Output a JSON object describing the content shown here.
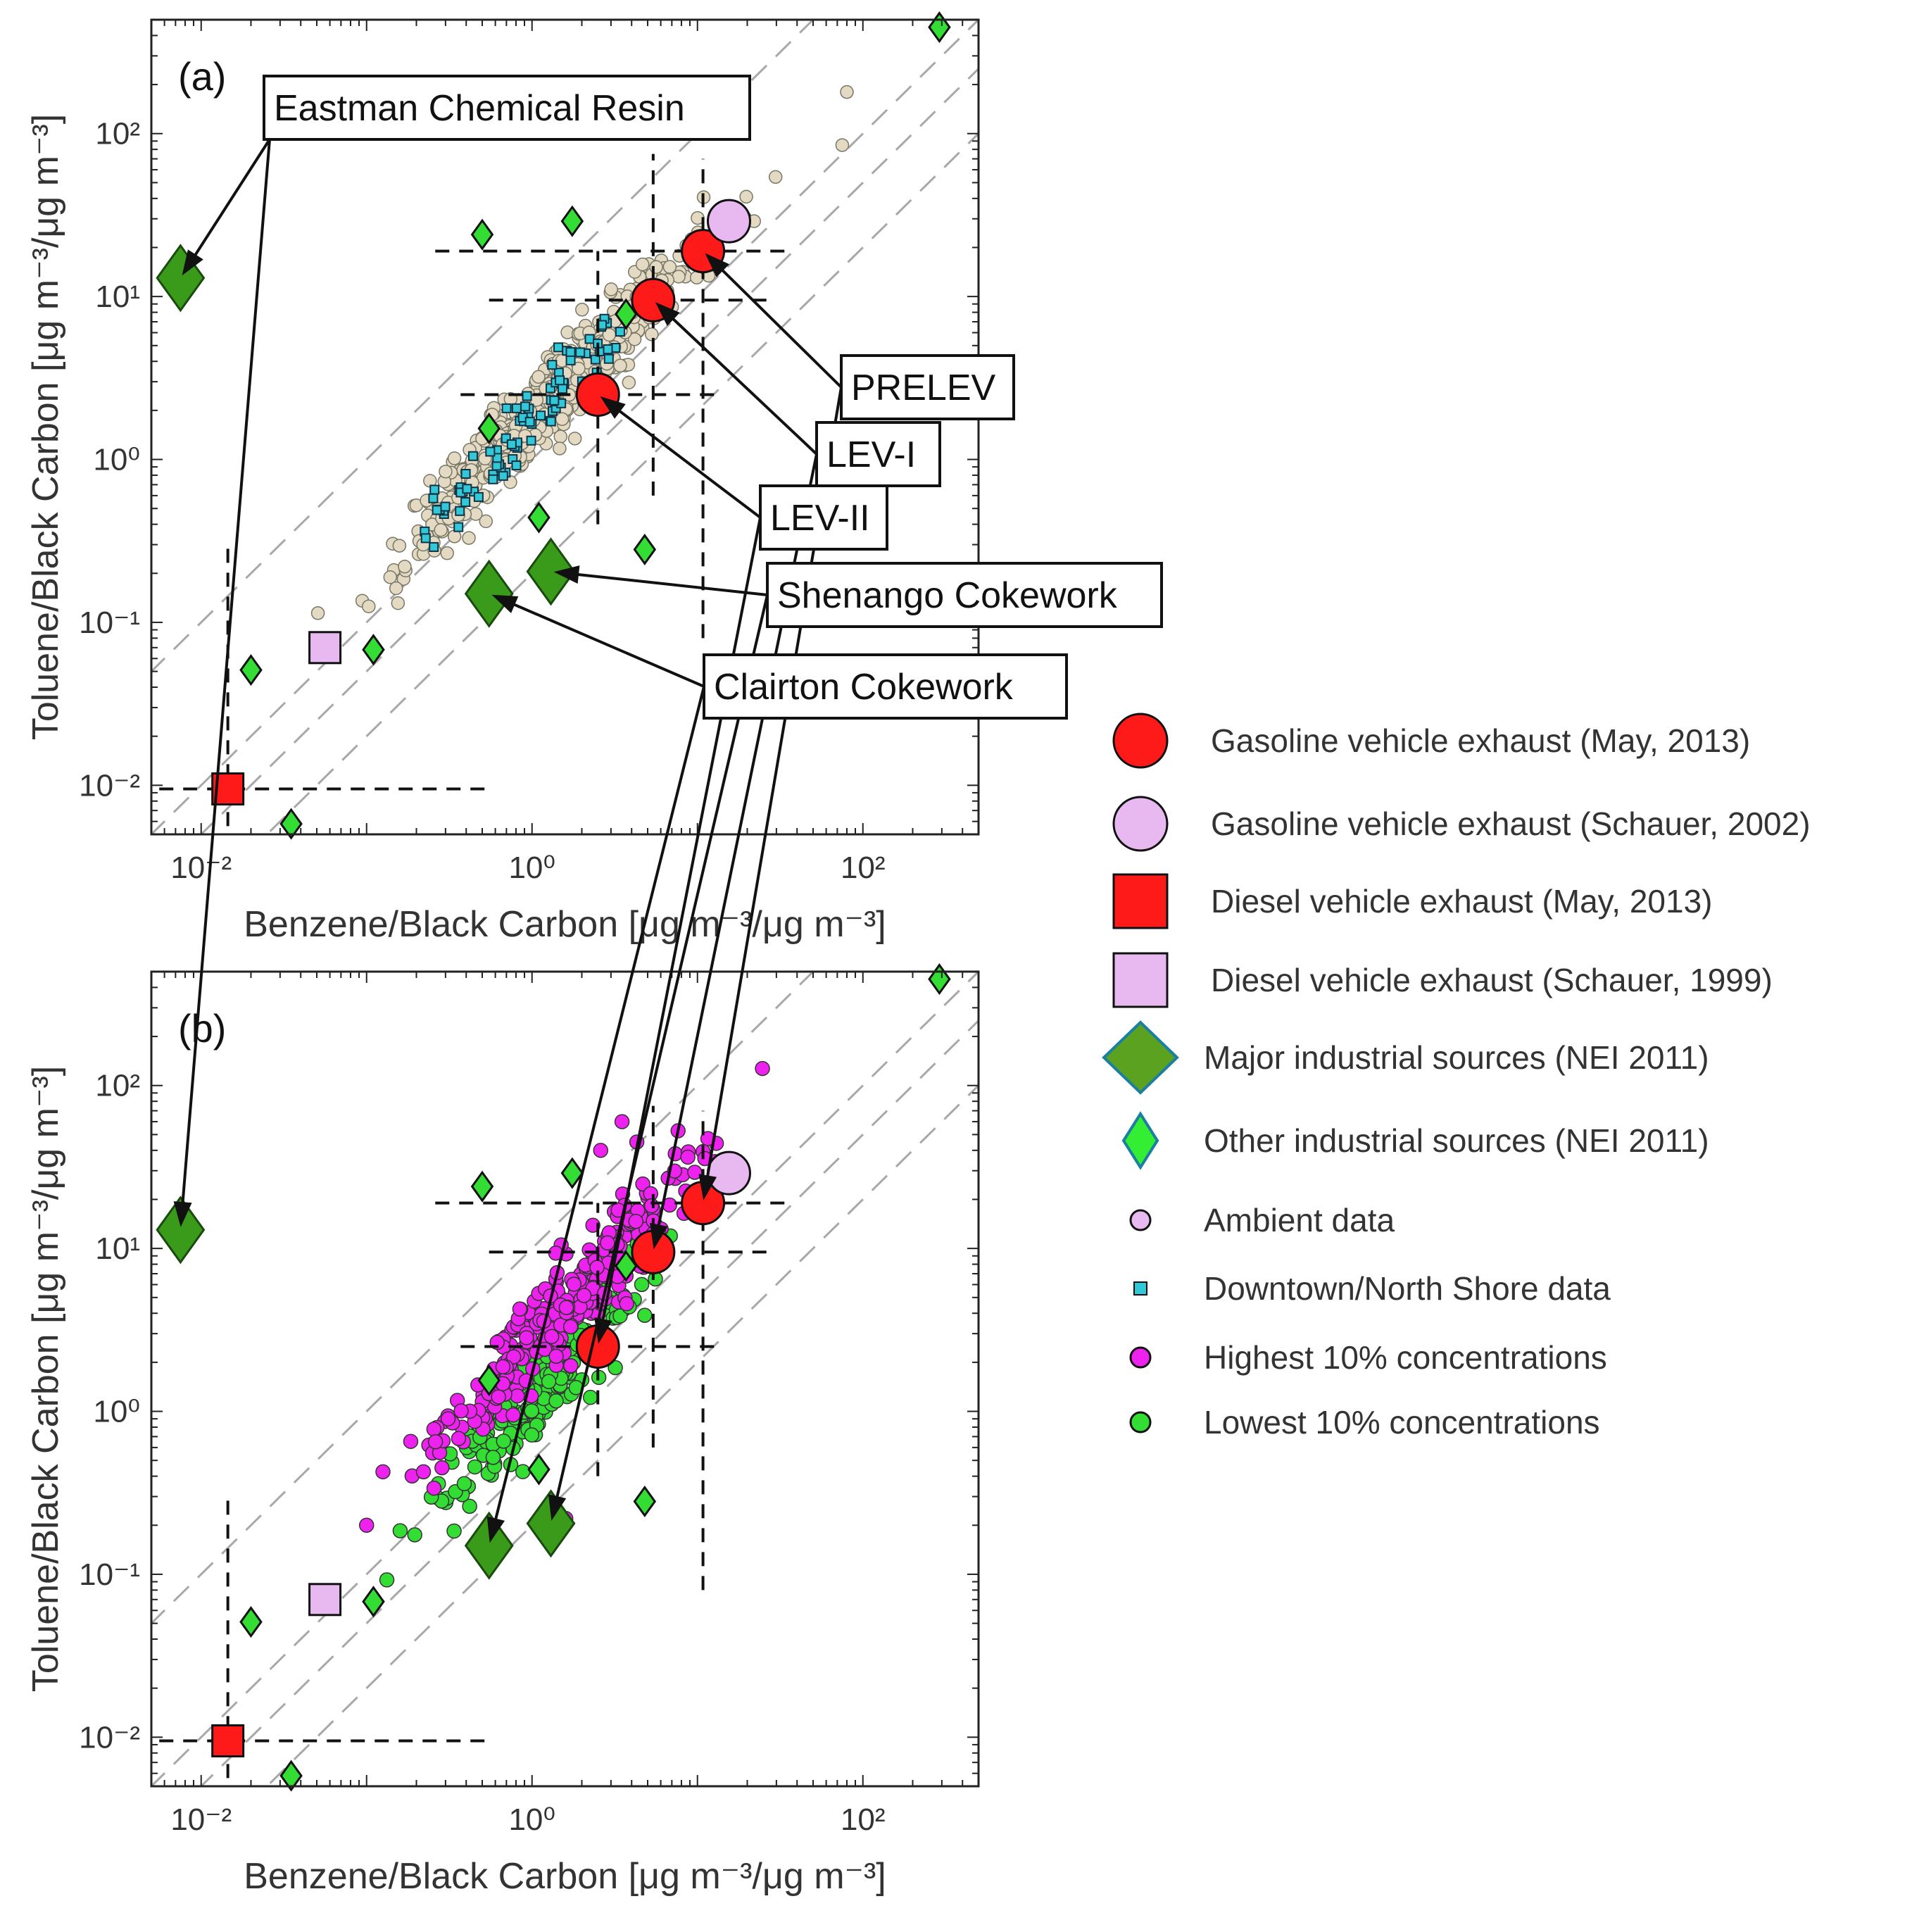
{
  "chart_data": {
    "type": "scatter",
    "figure_title": "",
    "scale": {
      "x": "log",
      "y": "log"
    },
    "xlim": [
      0.005,
      500
    ],
    "ylim": [
      0.005,
      500
    ],
    "xlabel": "Benzene/Black Carbon  [μg m⁻³/μg m⁻³]",
    "ylabel": "Toluene/Black Carbon  [μg m⁻³/μg m⁻³]",
    "x_ticks": [
      {
        "value": 0.01,
        "label": "10⁻²"
      },
      {
        "value": 1,
        "label": "10⁰"
      },
      {
        "value": 100,
        "label": "10²"
      }
    ],
    "y_ticks": [
      {
        "value": 0.01,
        "label": "10⁻²"
      },
      {
        "value": 0.1,
        "label": "10⁻¹"
      },
      {
        "value": 1,
        "label": "10⁰"
      },
      {
        "value": 10,
        "label": "10¹"
      },
      {
        "value": 100,
        "label": "10²"
      }
    ],
    "ratio_lines": [
      10,
      1,
      0.5,
      0.2
    ],
    "colors": {
      "gasoline_may": "#ff1a1a",
      "gasoline_schauer": "#e8b8f0",
      "diesel_may": "#ff1a1a",
      "diesel_schauer": "#e8b8f0",
      "major_industrial": "#3a9a1a",
      "other_industrial": "#33dd33",
      "ambient": "#e4d9c2",
      "downtown": "#33c8d8",
      "highest": "#ee22ee",
      "lowest": "#33dd33"
    },
    "panels": [
      {
        "label": "(a)",
        "cloud": "ambient",
        "ambient_cloud": {
          "center": [
            1.35,
            2.5
          ],
          "n": 700,
          "slope": 1.0
        },
        "downtown_cloud": {
          "from": [
            0.21,
            0.3
          ],
          "to": [
            3.4,
            6.8
          ],
          "n": 90
        }
      },
      {
        "label": "(b)",
        "cloud": "extremes",
        "highest_cloud": {
          "center": [
            1.6,
            4.0
          ],
          "n": 300
        },
        "lowest_cloud": {
          "center": [
            1.2,
            1.5
          ],
          "n": 230
        }
      }
    ],
    "sources": [
      {
        "name": "PRELEV",
        "category": "Gasoline vehicle exhaust (May, 2013)",
        "marker": "circle",
        "x": 10.8,
        "y": 19.0,
        "err_x": [
          0.26,
          36
        ],
        "err_y": [
          0.08,
          70
        ],
        "show_x_err": true
      },
      {
        "name": "LEV-I",
        "category": "Gasoline vehicle exhaust (May, 2013)",
        "marker": "circle",
        "x": 5.4,
        "y": 9.5,
        "err_x": [
          0.55,
          27
        ],
        "err_y": [
          0.6,
          75
        ],
        "show_x_err": true
      },
      {
        "name": "LEV-II",
        "category": "Gasoline vehicle exhaust (May, 2013)",
        "marker": "circle",
        "x": 2.5,
        "y": 2.5,
        "err_x": [
          0.37,
          13
        ],
        "err_y": [
          0.4,
          19
        ],
        "show_x_err": true
      },
      {
        "name": "",
        "category": "Gasoline vehicle exhaust (Schauer, 2002)",
        "marker": "circle",
        "x": 15.5,
        "y": 29.0
      },
      {
        "name": "",
        "category": "Diesel vehicle exhaust (May, 2013)",
        "marker": "square",
        "x": 0.0145,
        "y": 0.0095,
        "err_x": [
          0.004,
          0.55
        ],
        "err_y": [
          0.004,
          0.32
        ],
        "show_x_err": true
      },
      {
        "name": "",
        "category": "Diesel vehicle exhaust (Schauer, 1999)",
        "marker": "square",
        "x": 0.056,
        "y": 0.07
      },
      {
        "name": "Eastman Chemical Resin",
        "category": "Major industrial sources (NEI 2011)",
        "marker": "diamond",
        "x": 0.0075,
        "y": 13.0
      },
      {
        "name": "Shenango Cokework",
        "category": "Major industrial sources (NEI 2011)",
        "marker": "diamond",
        "x": 1.3,
        "y": 0.205
      },
      {
        "name": "Clairton Cokework",
        "category": "Major industrial sources (NEI 2011)",
        "marker": "diamond",
        "x": 0.55,
        "y": 0.15
      },
      {
        "name": "",
        "category": "Other industrial sources (NEI 2011)",
        "marker": "diamond",
        "x": 290,
        "y": 450
      },
      {
        "name": "",
        "category": "Other industrial sources (NEI 2011)",
        "marker": "diamond",
        "x": 0.5,
        "y": 24
      },
      {
        "name": "",
        "category": "Other industrial sources (NEI 2011)",
        "marker": "diamond",
        "x": 1.75,
        "y": 29
      },
      {
        "name": "",
        "category": "Other industrial sources (NEI 2011)",
        "marker": "diamond",
        "x": 3.7,
        "y": 7.8
      },
      {
        "name": "",
        "category": "Other industrial sources (NEI 2011)",
        "marker": "diamond",
        "x": 0.55,
        "y": 1.55
      },
      {
        "name": "",
        "category": "Other industrial sources (NEI 2011)",
        "marker": "diamond",
        "x": 1.1,
        "y": 0.44
      },
      {
        "name": "",
        "category": "Other industrial sources (NEI 2011)",
        "marker": "diamond",
        "x": 4.8,
        "y": 0.28
      },
      {
        "name": "",
        "category": "Other industrial sources (NEI 2011)",
        "marker": "diamond",
        "x": 0.11,
        "y": 0.068
      },
      {
        "name": "",
        "category": "Other industrial sources (NEI 2011)",
        "marker": "diamond",
        "x": 0.02,
        "y": 0.051
      },
      {
        "name": "",
        "category": "Other industrial sources (NEI 2011)",
        "marker": "diamond",
        "x": 0.035,
        "y": 0.0058
      }
    ],
    "callouts": [
      {
        "text": "Eastman Chemical Resin",
        "points_to": [
          0.0075,
          13.0
        ]
      },
      {
        "text": "PRELEV",
        "points_to": [
          10.8,
          19.0
        ]
      },
      {
        "text": "LEV-I",
        "points_to": [
          5.4,
          9.5
        ]
      },
      {
        "text": "LEV-II",
        "points_to": [
          2.5,
          2.5
        ]
      },
      {
        "text": "Shenango Cokework",
        "points_to": [
          1.3,
          0.205
        ]
      },
      {
        "text": "Clairton Cokework",
        "points_to": [
          0.55,
          0.15
        ]
      }
    ],
    "legend": {
      "position": "right",
      "entries": [
        {
          "label": "Gasoline vehicle exhaust (May, 2013)",
          "marker": "circle",
          "size": "large",
          "color": "#ff1a1a"
        },
        {
          "label": "Gasoline vehicle exhaust (Schauer, 2002)",
          "marker": "circle",
          "size": "large",
          "color": "#e8b8f0"
        },
        {
          "label": "Diesel vehicle exhaust (May, 2013)",
          "marker": "square",
          "size": "large",
          "color": "#ff1a1a"
        },
        {
          "label": "Diesel vehicle exhaust (Schauer, 1999)",
          "marker": "square",
          "size": "large",
          "color": "#e8b8f0"
        },
        {
          "label": "Major industrial sources (NEI 2011)",
          "marker": "diamond",
          "size": "large",
          "color": "#5aa21f",
          "stroke": "#1a7fa0"
        },
        {
          "label": "Other industrial sources (NEI 2011)",
          "marker": "diamond",
          "size": "medium",
          "color": "#33ee33",
          "stroke": "#1a7fa0"
        },
        {
          "label": "Ambient data",
          "marker": "circle",
          "size": "small",
          "color": "#e8b8f0"
        },
        {
          "label": "Downtown/North Shore data",
          "marker": "square",
          "size": "tiny",
          "color": "#33c8d8"
        },
        {
          "label": "Highest 10% concentrations",
          "marker": "circle",
          "size": "small",
          "color": "#ee22ee"
        },
        {
          "label": "Lowest 10% concentrations",
          "marker": "circle",
          "size": "small",
          "color": "#33dd33"
        }
      ]
    }
  }
}
